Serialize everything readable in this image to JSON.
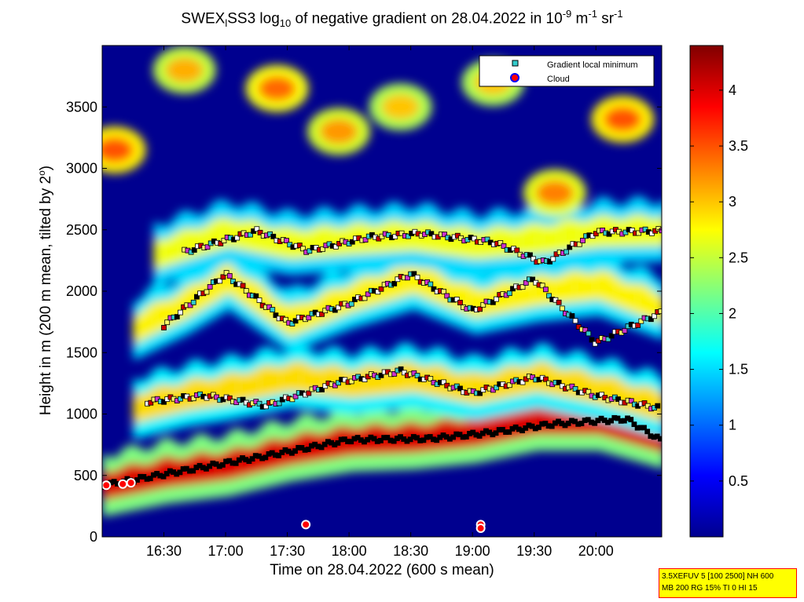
{
  "title_parts": {
    "a": "SWEX",
    "sub1": "l",
    "b": "SS3 log",
    "sub2": "10",
    "c": " of negative gradient on 28.04.2022 in 10",
    "sup1": "-9",
    "d": " m",
    "sup2": "-1",
    "e": " sr",
    "sup3": "-1"
  },
  "xlabel": "Time on 28.04.2022 (600 s mean)",
  "ylabel_a": "Height in m (200 m mean, tilted by 2",
  "ylabel_sup": "o",
  "ylabel_b": ")",
  "info_line1": "3.5XEFUV 5 [100 2500] NH 600",
  "info_line2": "MB 200 RG 15% TI 0 HI 15",
  "colors": {
    "background": "#ffffff",
    "info_box_fill": "#ffff00",
    "info_box_border": "#ff0000",
    "colormap": [
      "#00008f",
      "#0000ff",
      "#00ffff",
      "#ffff00",
      "#ff0000",
      "#800000"
    ]
  },
  "chart_data": {
    "type": "heatmap",
    "xlabel": "Time on 28.04.2022 (600 s mean)",
    "ylabel": "Height in m (200 m mean, tilted by 2°)",
    "x_ticks": [
      "16:30",
      "17:00",
      "17:30",
      "18:00",
      "18:30",
      "19:00",
      "19:30",
      "20:00"
    ],
    "x_tick_minutes": [
      990,
      1020,
      1050,
      1080,
      1110,
      1140,
      1170,
      1200
    ],
    "xlim_minutes": [
      960,
      1232
    ],
    "y_ticks": [
      0,
      500,
      1000,
      1500,
      2000,
      2500,
      3000,
      3500
    ],
    "ylim": [
      0,
      4000
    ],
    "colorbar_ticks": [
      "0.5",
      "1",
      "1.5",
      "2",
      "2.5",
      "3",
      "3.5",
      "4"
    ],
    "colorbar_tick_values": [
      0.5,
      1,
      1.5,
      2,
      2.5,
      3,
      3.5,
      4
    ],
    "colorbar_range": [
      0,
      4.4
    ],
    "legend": {
      "placement": "top-right",
      "entries": [
        "Gradient local minimum",
        "Cloud"
      ]
    },
    "layers": [
      {
        "t": [
          960,
          990,
          1020,
          1050,
          1080,
          1110,
          1140,
          1170,
          1200,
          1232
        ],
        "h": [
          420,
          520,
          580,
          700,
          780,
          800,
          850,
          950,
          950,
          800
        ],
        "v": 4.0
      },
      {
        "t": [
          975,
          1000,
          1020,
          1050,
          1080,
          1110,
          1140,
          1170,
          1200,
          1232
        ],
        "h": [
          1050,
          1150,
          1200,
          1300,
          1250,
          1300,
          1200,
          1300,
          1200,
          1050
        ],
        "v": 2.9
      },
      {
        "t": [
          975,
          1000,
          1020,
          1050,
          1080,
          1110,
          1140,
          1170,
          1200,
          1232
        ],
        "h": [
          1700,
          1900,
          2100,
          1750,
          1950,
          2100,
          1900,
          2000,
          2050,
          1850
        ],
        "v": 2.8
      },
      {
        "t": [
          985,
          1020,
          1050,
          1080,
          1110,
          1140,
          1170,
          1200,
          1232
        ],
        "h": [
          2300,
          2480,
          2380,
          2420,
          2450,
          2380,
          2420,
          2480,
          2490
        ],
        "v": 2.7
      }
    ],
    "patches": [
      {
        "t": 966,
        "h": 3150,
        "v": 3.5
      },
      {
        "t": 1045,
        "h": 3650,
        "v": 3.4
      },
      {
        "t": 1075,
        "h": 3300,
        "v": 3.2
      },
      {
        "t": 1105,
        "h": 3500,
        "v": 3.0
      },
      {
        "t": 1180,
        "h": 2800,
        "v": 3.3
      },
      {
        "t": 1213,
        "h": 3400,
        "v": 3.5
      },
      {
        "t": 1000,
        "h": 3800,
        "v": 3.1
      },
      {
        "t": 1150,
        "h": 3700,
        "v": 3.0
      }
    ],
    "gradient_minimum_points": [
      {
        "t": [
          961,
          1000,
          1040,
          1080,
          1120,
          1150,
          1180,
          1215,
          1232
        ],
        "h": [
          420,
          540,
          660,
          790,
          800,
          850,
          920,
          960,
          780
        ]
      },
      {
        "t": [
          982,
          1010,
          1040,
          1075,
          1105,
          1140,
          1170,
          1200,
          1230
        ],
        "h": [
          1100,
          1150,
          1070,
          1260,
          1350,
          1170,
          1300,
          1150,
          1050
        ]
      },
      {
        "t": [
          990,
          1020,
          1050,
          1080,
          1110,
          1140,
          1170,
          1200,
          1232
        ],
        "h": [
          1720,
          2140,
          1740,
          1900,
          2140,
          1840,
          2100,
          1580,
          1830
        ]
      },
      {
        "t": [
          1000,
          1035,
          1060,
          1090,
          1115,
          1150,
          1175,
          1200,
          1232
        ],
        "h": [
          2320,
          2490,
          2330,
          2440,
          2470,
          2400,
          2230,
          2480,
          2490
        ]
      }
    ],
    "cloud_points": [
      {
        "t": 962,
        "h": 420
      },
      {
        "t": 970,
        "h": 430
      },
      {
        "t": 974,
        "h": 440
      },
      {
        "t": 1059,
        "h": 100
      },
      {
        "t": 1144,
        "h": 100
      },
      {
        "t": 1144,
        "h": 70
      }
    ]
  }
}
